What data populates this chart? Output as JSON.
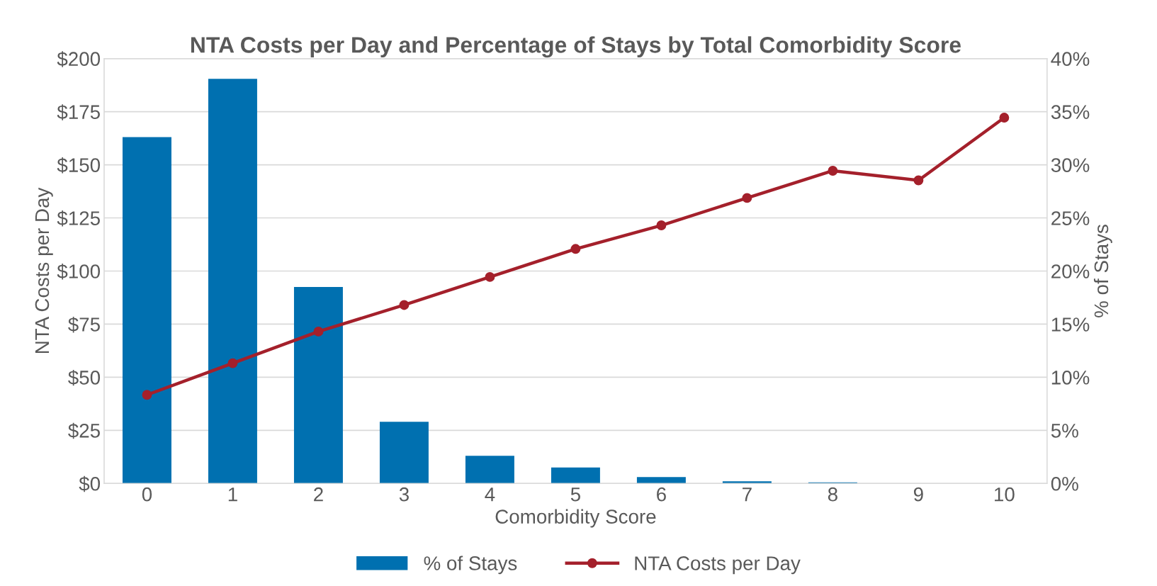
{
  "chart_data": {
    "type": "bar",
    "title": "NTA Costs per Day and Percentage of Stays by Total Comorbidity Score",
    "xlabel": "Comorbidity Score",
    "ylabel": "NTA Costs per Day",
    "y2label": "% of Stays",
    "categories": [
      "0",
      "1",
      "2",
      "3",
      "4",
      "5",
      "6",
      "7",
      "8",
      "9",
      "10"
    ],
    "series": [
      {
        "name": "% of Stays",
        "axis": "y2",
        "color": "#0070b0",
        "values": [
          32.6,
          38.1,
          18.5,
          5.8,
          2.6,
          1.5,
          0.6,
          0.2,
          0.1,
          0,
          0
        ]
      },
      {
        "name": "NTA Costs per Day",
        "type": "line",
        "axis": "y",
        "color": "#a4202b",
        "marker": "circle",
        "values": [
          41.7,
          56.6,
          71.5,
          84,
          97.2,
          110.4,
          121.5,
          134.4,
          147.2,
          142.7,
          172.2
        ]
      }
    ],
    "ylim": [
      0,
      200
    ],
    "yticks": [
      {
        "value": 0,
        "label": "$0"
      },
      {
        "value": 25,
        "label": "$25"
      },
      {
        "value": 50,
        "label": "$50"
      },
      {
        "value": 75,
        "label": "$75"
      },
      {
        "value": 100,
        "label": "$100"
      },
      {
        "value": 125,
        "label": "$125"
      },
      {
        "value": 150,
        "label": "$150"
      },
      {
        "value": 175,
        "label": "$175"
      },
      {
        "value": 200,
        "label": "$200"
      }
    ],
    "y2lim": [
      0,
      40
    ],
    "y2ticks": [
      {
        "value": 0,
        "label": "0%"
      },
      {
        "value": 5,
        "label": "5%"
      },
      {
        "value": 10,
        "label": "10%"
      },
      {
        "value": 15,
        "label": "15%"
      },
      {
        "value": 20,
        "label": "20%"
      },
      {
        "value": 25,
        "label": "25%"
      },
      {
        "value": 30,
        "label": "30%"
      },
      {
        "value": 35,
        "label": "35%"
      },
      {
        "value": 40,
        "label": "40%"
      }
    ],
    "grid": "y",
    "legend": "bottom"
  }
}
